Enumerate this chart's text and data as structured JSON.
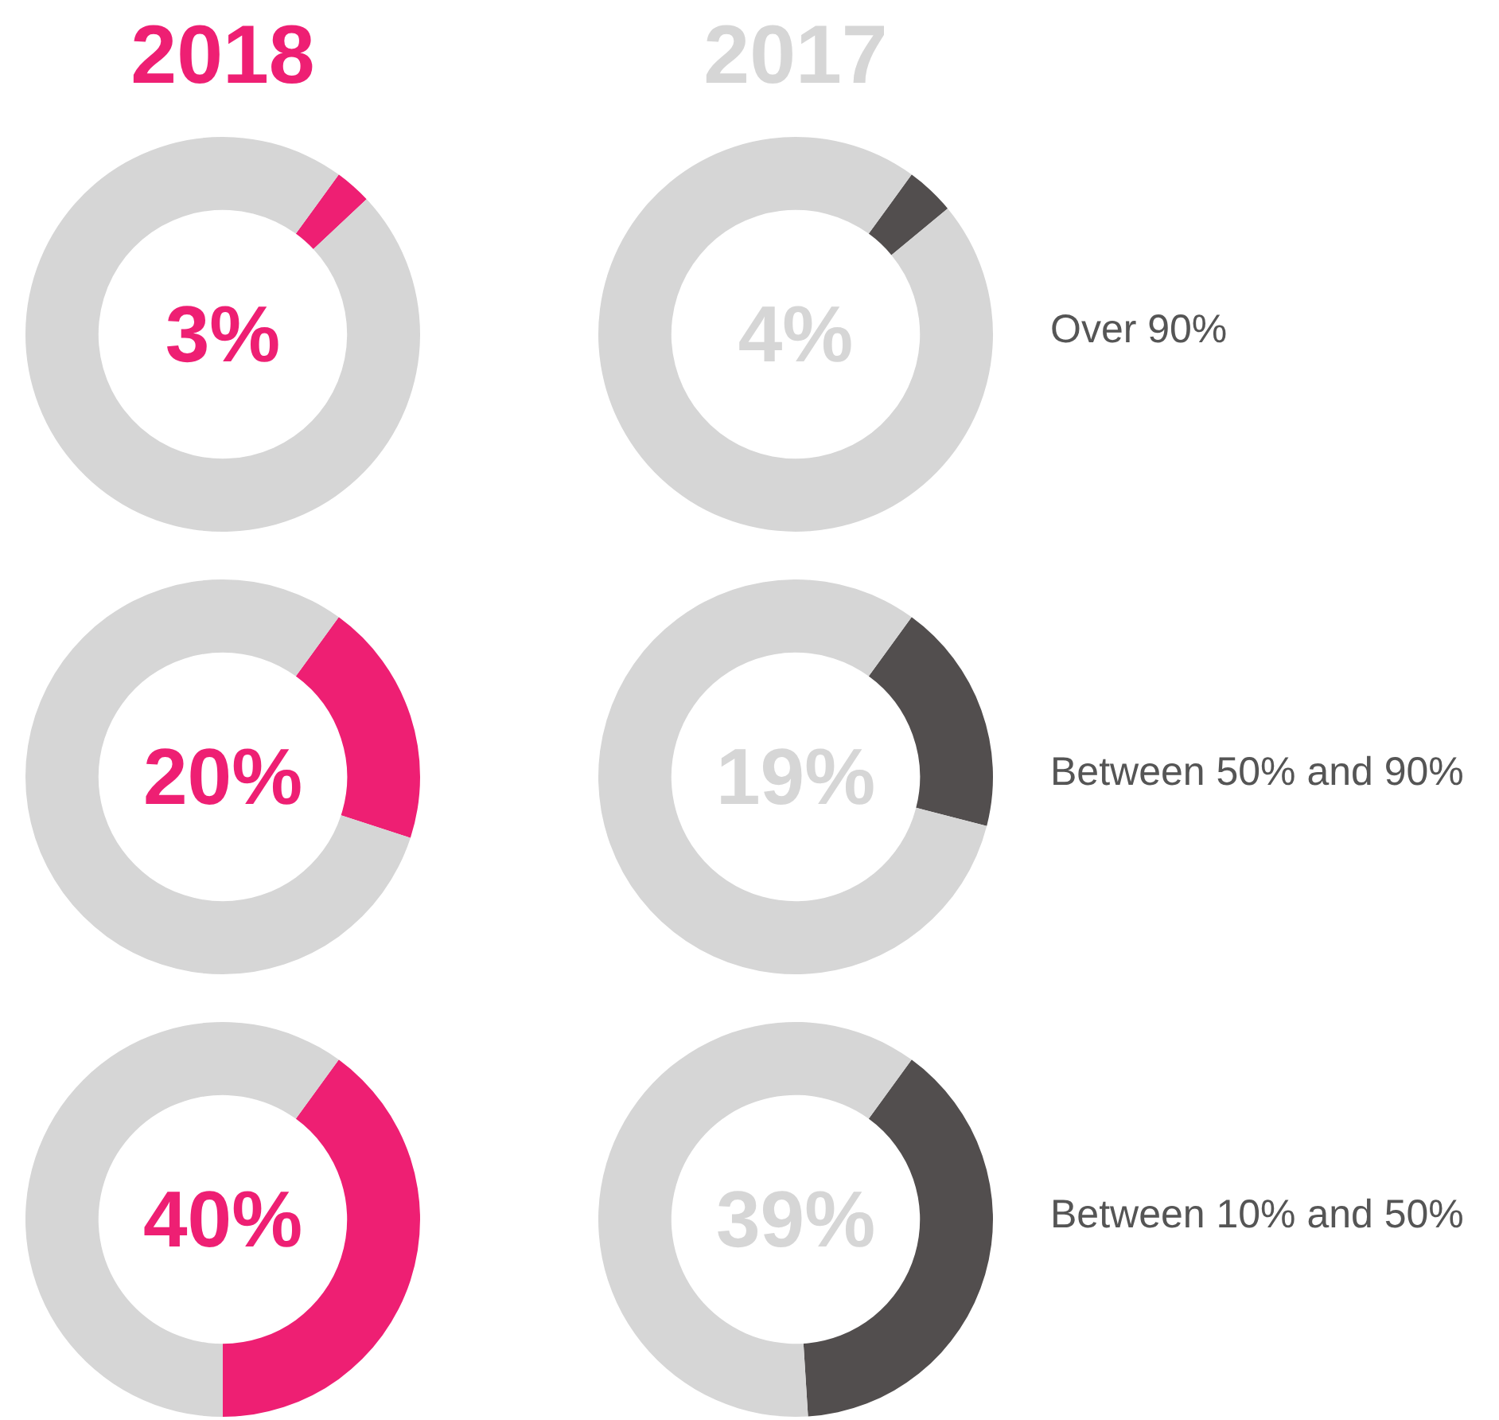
{
  "chart_data": [
    {
      "type": "donut",
      "title": "2018",
      "categories": [
        null,
        null
      ],
      "values": [
        3,
        97
      ],
      "colors": [
        "#ee1f73",
        "#d6d6d6"
      ],
      "legend": false,
      "annotations": [
        "3%"
      ]
    },
    {
      "type": "donut",
      "title": "2017",
      "categories": [
        null,
        null
      ],
      "values": [
        4,
        96
      ],
      "colors": [
        "#524e4e",
        "#d6d6d6"
      ],
      "legend": false,
      "annotations": [
        "4%",
        "Over 90%"
      ]
    },
    {
      "type": "donut",
      "categories": [
        null,
        null
      ],
      "values": [
        20,
        80
      ],
      "colors": [
        "#ee1f73",
        "#d6d6d6"
      ],
      "legend": false,
      "annotations": [
        "20%"
      ]
    },
    {
      "type": "donut",
      "categories": [
        null,
        null
      ],
      "values": [
        19,
        81
      ],
      "colors": [
        "#524e4e",
        "#d6d6d6"
      ],
      "legend": false,
      "annotations": [
        "19%",
        "Between 50% and 90%"
      ]
    },
    {
      "type": "donut",
      "categories": [
        null,
        null
      ],
      "values": [
        40,
        60
      ],
      "colors": [
        "#ee1f73",
        "#d6d6d6"
      ],
      "legend": false,
      "annotations": [
        "40%"
      ]
    },
    {
      "type": "donut",
      "categories": [
        null,
        null
      ],
      "values": [
        39,
        61
      ],
      "colors": [
        "#524e4e",
        "#d6d6d6"
      ],
      "legend": false,
      "annotations": [
        "39%",
        "Between 10% and 50%"
      ]
    }
  ]
}
